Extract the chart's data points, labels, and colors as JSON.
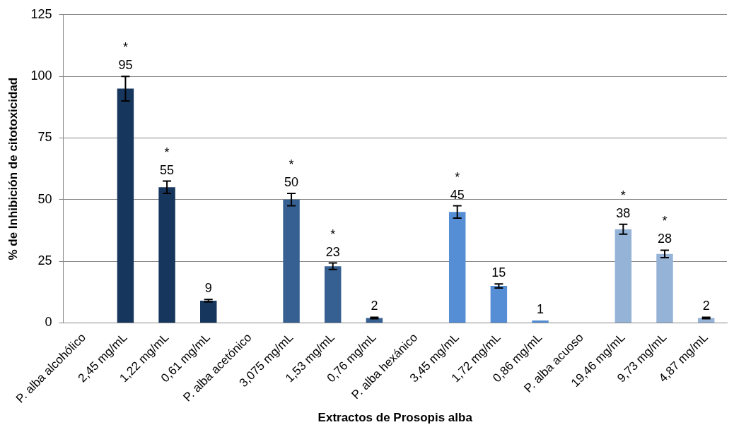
{
  "chart_data": {
    "type": "bar",
    "xlabel": "Extractos de Prosopis alba",
    "ylabel": "% de Inhibición de citotoxicidad",
    "categories": [
      "P. alba alcohólico",
      "2,45 mg/mL",
      "1,22 mg/mL",
      "0,61 mg/mL",
      "P. alba acetónico",
      "3,075 mg/mL",
      "1,53 mg/mL",
      "0,76 mg/mL",
      "P. alba hexánico",
      "3,45 mg/mL",
      "1,72 mg/mL",
      "0,86 mg/mL",
      "P. alba acuoso",
      "19,46 mg/mL",
      "9,73 mg/mL",
      "4,87 mg/mL"
    ],
    "values": [
      null,
      95,
      55,
      9,
      null,
      50,
      23,
      2,
      null,
      45,
      15,
      1,
      null,
      38,
      28,
      2
    ],
    "errors": [
      null,
      5,
      2.5,
      0.5,
      null,
      2.5,
      1.3,
      0.3,
      null,
      2.5,
      0.8,
      null,
      null,
      2,
      1.5,
      0.3
    ],
    "colors": [
      "#17365d",
      "#17365d",
      "#17365d",
      "#17365d",
      "#366092",
      "#366092",
      "#366092",
      "#366092",
      "#558ed5",
      "#558ed5",
      "#558ed5",
      "#558ed5",
      "#95b3d7",
      "#95b3d7",
      "#95b3d7",
      "#95b3d7"
    ],
    "ylim": [
      0,
      125
    ],
    "yticks": [
      0,
      25,
      50,
      75,
      100,
      125
    ],
    "grid": "y",
    "legend": false,
    "data_labels": true,
    "annotations": [
      {
        "text": "*",
        "x": "2,45 mg/mL",
        "y": 95
      },
      {
        "text": "*",
        "x": "1,22 mg/mL",
        "y": 55
      },
      {
        "text": "*",
        "x": "3,075 mg/mL",
        "y": 50
      },
      {
        "text": "*",
        "x": "1,53 mg/mL",
        "y": 23
      },
      {
        "text": "*",
        "x": "3,45 mg/mL",
        "y": 45
      },
      {
        "text": "*",
        "x": "19,46 mg/mL",
        "y": 38
      },
      {
        "text": "*",
        "x": "9,73 mg/mL",
        "y": 28
      }
    ]
  }
}
